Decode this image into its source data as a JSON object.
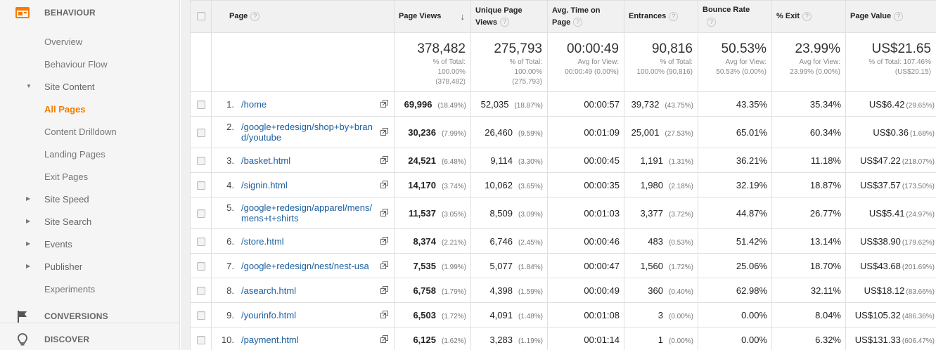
{
  "sidebar": {
    "behaviour_label": "BEHAVIOUR",
    "items": [
      {
        "label": "Overview"
      },
      {
        "label": "Behaviour Flow"
      },
      {
        "label": "Site Content"
      },
      {
        "label": "All Pages"
      },
      {
        "label": "Content Drilldown"
      },
      {
        "label": "Landing Pages"
      },
      {
        "label": "Exit Pages"
      },
      {
        "label": "Site Speed"
      },
      {
        "label": "Site Search"
      },
      {
        "label": "Events"
      },
      {
        "label": "Publisher"
      },
      {
        "label": "Experiments"
      }
    ],
    "conversions_label": "CONVERSIONS",
    "discover_label": "DISCOVER"
  },
  "colors": {
    "accent": "#f57c00",
    "link": "#1a5fa0"
  },
  "table": {
    "headers": {
      "page": "Page",
      "page_views": "Page Views",
      "unique_page_views_1": "Unique Page",
      "unique_page_views_2": "Views",
      "avg_time_1": "Avg. Time on",
      "avg_time_2": "Page",
      "entrances": "Entrances",
      "bounce_rate": "Bounce Rate",
      "exit": "% Exit",
      "page_value": "Page Value"
    },
    "totals": {
      "page_views": {
        "value": "378,482",
        "sub1": "% of Total:",
        "sub2": "100.00%",
        "sub3": "(378,482)"
      },
      "unique_page_views": {
        "value": "275,793",
        "sub1": "% of Total:",
        "sub2": "100.00%",
        "sub3": "(275,793)"
      },
      "avg_time": {
        "value": "00:00:49",
        "sub1": "Avg for View:",
        "sub2": "00:00:49 (0.00%)"
      },
      "entrances": {
        "value": "90,816",
        "sub1": "% of Total:",
        "sub2": "100.00% (90,816)"
      },
      "bounce_rate": {
        "value": "50.53%",
        "sub1": "Avg for View:",
        "sub2": "50.53% (0.00%)"
      },
      "exit": {
        "value": "23.99%",
        "sub1": "Avg for View:",
        "sub2": "23.99% (0.00%)"
      },
      "page_value": {
        "value": "US$21.65",
        "sub1": "% of Total: 107.46%",
        "sub2": "(US$20.15)"
      }
    },
    "rows": [
      {
        "num": "1.",
        "page": "/home",
        "pv": "69,996",
        "pv_pct": "(18.49%)",
        "upv": "52,035",
        "upv_pct": "(18.87%)",
        "time": "00:00:57",
        "ent": "39,732",
        "ent_pct": "(43.75%)",
        "bounce": "43.35%",
        "exit": "35.34%",
        "val": "US$6.42",
        "val_pct": "(29.65%)"
      },
      {
        "num": "2.",
        "page": "/google+redesign/shop+by+brand/youtube",
        "pv": "30,236",
        "pv_pct": "(7.99%)",
        "upv": "26,460",
        "upv_pct": "(9.59%)",
        "time": "00:01:09",
        "ent": "25,001",
        "ent_pct": "(27.53%)",
        "bounce": "65.01%",
        "exit": "60.34%",
        "val": "US$0.36",
        "val_pct": "(1.68%)"
      },
      {
        "num": "3.",
        "page": "/basket.html",
        "pv": "24,521",
        "pv_pct": "(6.48%)",
        "upv": "9,114",
        "upv_pct": "(3.30%)",
        "time": "00:00:45",
        "ent": "1,191",
        "ent_pct": "(1.31%)",
        "bounce": "36.21%",
        "exit": "11.18%",
        "val": "US$47.22",
        "val_pct": "(218.07%)"
      },
      {
        "num": "4.",
        "page": "/signin.html",
        "pv": "14,170",
        "pv_pct": "(3.74%)",
        "upv": "10,062",
        "upv_pct": "(3.65%)",
        "time": "00:00:35",
        "ent": "1,980",
        "ent_pct": "(2.18%)",
        "bounce": "32.19%",
        "exit": "18.87%",
        "val": "US$37.57",
        "val_pct": "(173.50%)"
      },
      {
        "num": "5.",
        "page": "/google+redesign/apparel/mens/mens+t+shirts",
        "pv": "11,537",
        "pv_pct": "(3.05%)",
        "upv": "8,509",
        "upv_pct": "(3.09%)",
        "time": "00:01:03",
        "ent": "3,377",
        "ent_pct": "(3.72%)",
        "bounce": "44.87%",
        "exit": "26.77%",
        "val": "US$5.41",
        "val_pct": "(24.97%)"
      },
      {
        "num": "6.",
        "page": "/store.html",
        "pv": "8,374",
        "pv_pct": "(2.21%)",
        "upv": "6,746",
        "upv_pct": "(2.45%)",
        "time": "00:00:46",
        "ent": "483",
        "ent_pct": "(0.53%)",
        "bounce": "51.42%",
        "exit": "13.14%",
        "val": "US$38.90",
        "val_pct": "(179.62%)"
      },
      {
        "num": "7.",
        "page": "/google+redesign/nest/nest-usa",
        "pv": "7,535",
        "pv_pct": "(1.99%)",
        "upv": "5,077",
        "upv_pct": "(1.84%)",
        "time": "00:00:47",
        "ent": "1,560",
        "ent_pct": "(1.72%)",
        "bounce": "25.06%",
        "exit": "18.70%",
        "val": "US$43.68",
        "val_pct": "(201.69%)"
      },
      {
        "num": "8.",
        "page": "/asearch.html",
        "pv": "6,758",
        "pv_pct": "(1.79%)",
        "upv": "4,398",
        "upv_pct": "(1.59%)",
        "time": "00:00:49",
        "ent": "360",
        "ent_pct": "(0.40%)",
        "bounce": "62.98%",
        "exit": "32.11%",
        "val": "US$18.12",
        "val_pct": "(83.66%)"
      },
      {
        "num": "9.",
        "page": "/yourinfo.html",
        "pv": "6,503",
        "pv_pct": "(1.72%)",
        "upv": "4,091",
        "upv_pct": "(1.48%)",
        "time": "00:01:08",
        "ent": "3",
        "ent_pct": "(0.00%)",
        "bounce": "0.00%",
        "exit": "8.04%",
        "val": "US$105.32",
        "val_pct": "(486.36%)"
      },
      {
        "num": "10.",
        "page": "/payment.html",
        "pv": "6,125",
        "pv_pct": "(1.62%)",
        "upv": "3,283",
        "upv_pct": "(1.19%)",
        "time": "00:01:14",
        "ent": "1",
        "ent_pct": "(0.00%)",
        "bounce": "0.00%",
        "exit": "6.32%",
        "val": "US$131.33",
        "val_pct": "(606.47%)"
      }
    ]
  }
}
